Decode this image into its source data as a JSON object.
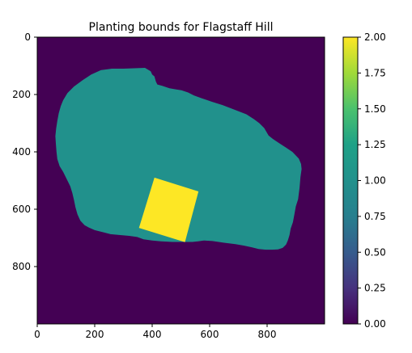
{
  "chart_data": {
    "type": "heatmap",
    "title": "Planting bounds for Flagstaff Hill",
    "xlabel": "",
    "ylabel": "",
    "xlim": [
      0,
      1000
    ],
    "ylim": [
      1000,
      0
    ],
    "x_ticks": [
      0,
      200,
      400,
      600,
      800
    ],
    "y_ticks": [
      0,
      200,
      400,
      600,
      800
    ],
    "grid": false,
    "colormap": "viridis",
    "colorbar": {
      "range": [
        0,
        2
      ],
      "ticks": [
        "0.00",
        "0.25",
        "0.50",
        "0.75",
        "1.00",
        "1.25",
        "1.50",
        "1.75",
        "2.00"
      ]
    },
    "background": {
      "value": 0,
      "color": "#440154"
    },
    "regions": [
      {
        "value": 1,
        "color": "#21918c",
        "outline": [
          [
            300,
            110
          ],
          [
            375,
            107
          ],
          [
            395,
            119
          ],
          [
            400,
            130
          ],
          [
            408,
            137
          ],
          [
            413,
            155
          ],
          [
            418,
            165
          ],
          [
            435,
            170
          ],
          [
            460,
            178
          ],
          [
            482,
            182
          ],
          [
            502,
            185
          ],
          [
            525,
            193
          ],
          [
            545,
            203
          ],
          [
            572,
            213
          ],
          [
            607,
            225
          ],
          [
            645,
            237
          ],
          [
            690,
            254
          ],
          [
            728,
            269
          ],
          [
            754,
            286
          ],
          [
            773,
            300
          ],
          [
            790,
            317
          ],
          [
            805,
            343
          ],
          [
            820,
            355
          ],
          [
            842,
            370
          ],
          [
            866,
            385
          ],
          [
            888,
            400
          ],
          [
            910,
            423
          ],
          [
            918,
            442
          ],
          [
            920,
            460
          ],
          [
            916,
            488
          ],
          [
            913,
            525
          ],
          [
            908,
            565
          ],
          [
            900,
            590
          ],
          [
            895,
            618
          ],
          [
            890,
            645
          ],
          [
            882,
            668
          ],
          [
            878,
            690
          ],
          [
            872,
            709
          ],
          [
            866,
            723
          ],
          [
            854,
            735
          ],
          [
            838,
            740
          ],
          [
            818,
            741
          ],
          [
            795,
            741
          ],
          [
            770,
            739
          ],
          [
            748,
            733
          ],
          [
            720,
            727
          ],
          [
            690,
            722
          ],
          [
            650,
            717
          ],
          [
            610,
            711
          ],
          [
            580,
            709
          ],
          [
            560,
            712
          ],
          [
            540,
            714
          ],
          [
            510,
            714
          ],
          [
            470,
            714
          ],
          [
            430,
            712
          ],
          [
            400,
            709
          ],
          [
            370,
            705
          ],
          [
            348,
            697
          ],
          [
            320,
            693
          ],
          [
            285,
            690
          ],
          [
            255,
            687
          ],
          [
            228,
            680
          ],
          [
            200,
            673
          ],
          [
            180,
            664
          ],
          [
            165,
            656
          ],
          [
            150,
            640
          ],
          [
            140,
            618
          ],
          [
            133,
            593
          ],
          [
            128,
            568
          ],
          [
            122,
            543
          ],
          [
            115,
            520
          ],
          [
            105,
            500
          ],
          [
            90,
            470
          ],
          [
            78,
            450
          ],
          [
            70,
            425
          ],
          [
            67,
            400
          ],
          [
            65,
            375
          ],
          [
            63,
            345
          ],
          [
            66,
            318
          ],
          [
            70,
            292
          ],
          [
            75,
            265
          ],
          [
            82,
            240
          ],
          [
            90,
            220
          ],
          [
            105,
            195
          ],
          [
            128,
            172
          ],
          [
            158,
            150
          ],
          [
            188,
            130
          ],
          [
            222,
            115
          ],
          [
            260,
            110
          ]
        ]
      },
      {
        "value": 2,
        "color": "#fde725",
        "outline": [
          [
            408,
            490
          ],
          [
            561,
            538
          ],
          [
            514,
            715
          ],
          [
            354,
            665
          ]
        ]
      }
    ]
  }
}
